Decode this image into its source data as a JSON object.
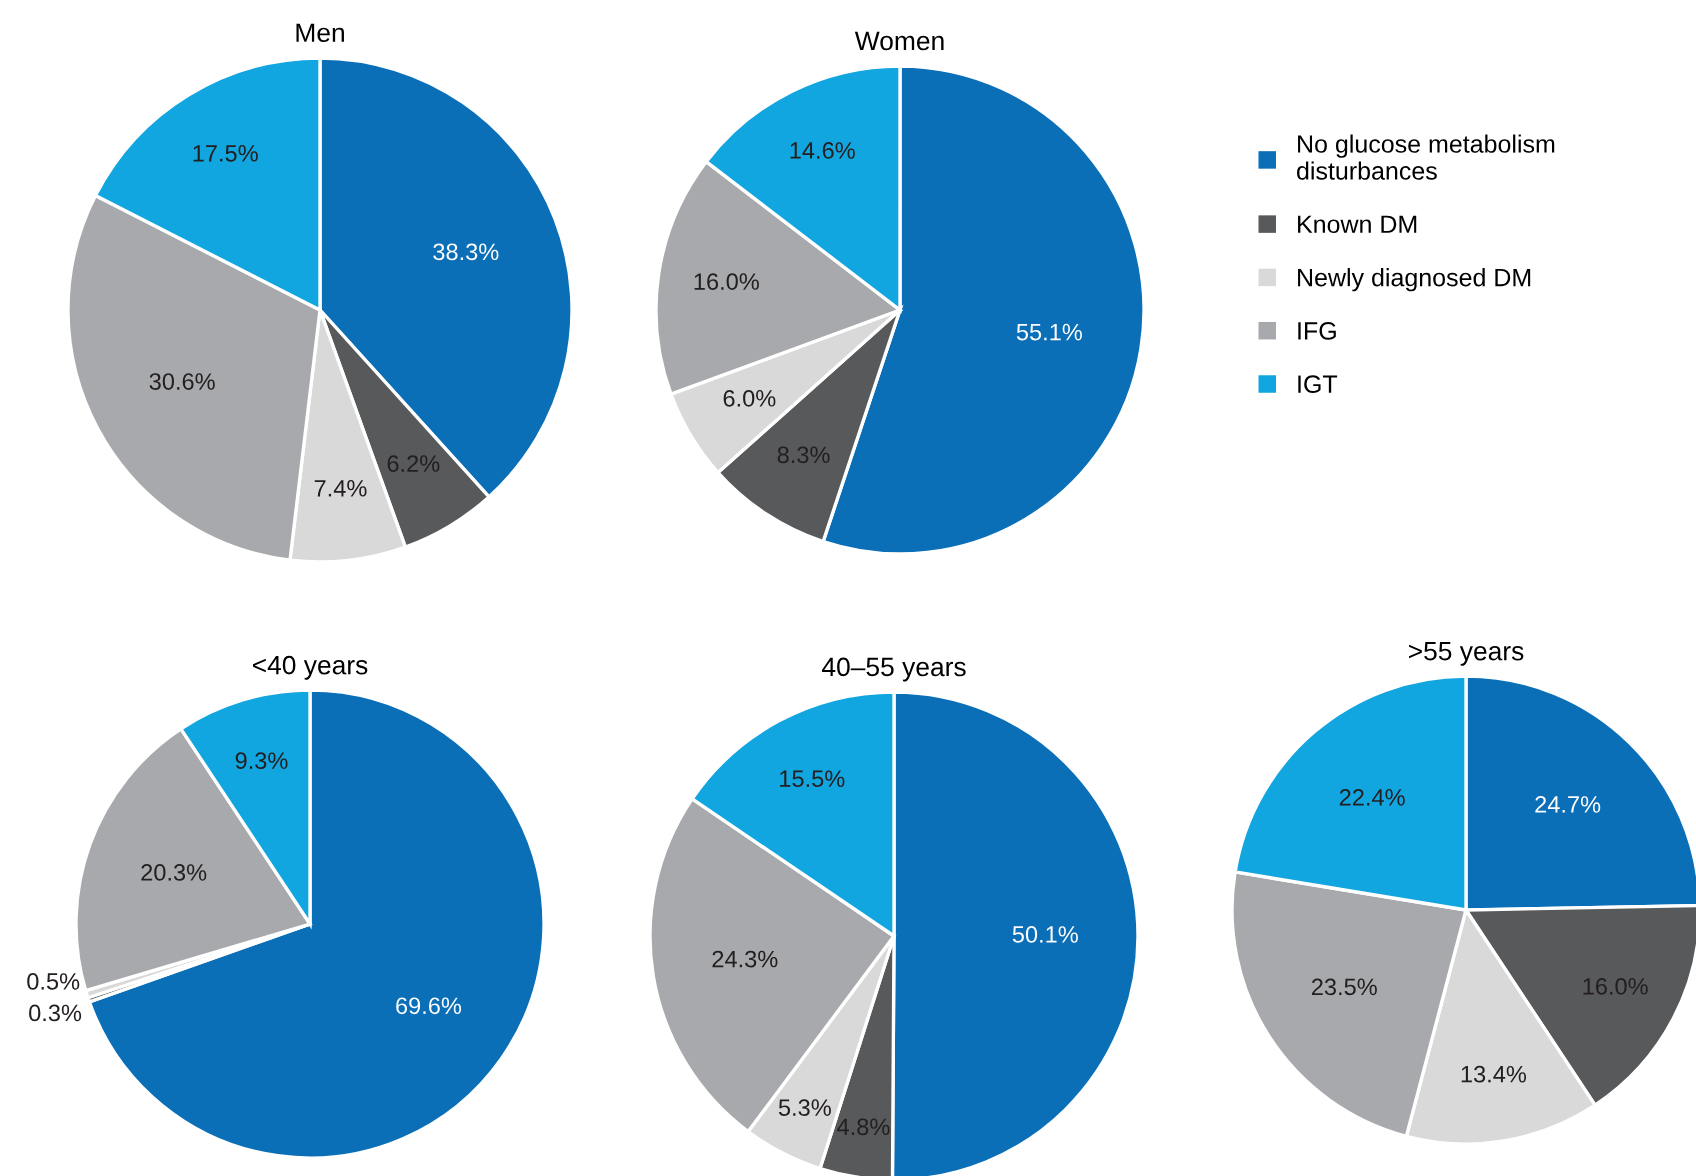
{
  "chart_data": [
    {
      "type": "pie",
      "title": "Men",
      "categories": [
        "No glucose metabolism disturbances",
        "Known DM",
        "Newly diagnosed DM",
        "IFG",
        "IGT"
      ],
      "values": [
        38.3,
        6.2,
        7.4,
        30.6,
        17.5
      ],
      "value_labels": [
        "38.3%",
        "6.2%",
        "7.4%",
        "30.6%",
        "17.5%"
      ],
      "colors": [
        "#0b6fb8",
        "#58595b",
        "#d9d9d9",
        "#a7a9ac",
        "#11a6e0"
      ],
      "legend": "right"
    },
    {
      "type": "pie",
      "title": "Women",
      "categories": [
        null,
        null,
        null,
        null,
        null
      ],
      "values": [
        55.1,
        8.3,
        6.0,
        16.0,
        14.6
      ],
      "value_labels": [
        "55.1%",
        "8.3%",
        "6.0%",
        "16.0%",
        "14.6%"
      ],
      "colors": [
        "#0b6fb8",
        "#58595b",
        "#d9d9d9",
        "#a7a9ac",
        "#11a6e0"
      ]
    },
    {
      "type": "pie",
      "title": "<40 years",
      "categories": [
        null,
        null,
        null,
        null,
        null
      ],
      "values": [
        69.6,
        0.3,
        0.5,
        20.3,
        9.3
      ],
      "value_labels": [
        "69.6%",
        "0.3%",
        "0.5%",
        "20.3%",
        "9.3%"
      ],
      "colors": [
        "#0b6fb8",
        "#58595b",
        "#d9d9d9",
        "#a7a9ac",
        "#11a6e0"
      ]
    },
    {
      "type": "pie",
      "title": "40–55 years",
      "categories": [
        null,
        null,
        null,
        null,
        null
      ],
      "values": [
        50.1,
        4.8,
        5.3,
        24.3,
        15.5
      ],
      "value_labels": [
        "50.1%",
        "4.8%",
        "5.3%",
        "24.3%",
        "15.5%"
      ],
      "colors": [
        "#0b6fb8",
        "#58595b",
        "#d9d9d9",
        "#a7a9ac",
        "#11a6e0"
      ]
    },
    {
      "type": "pie",
      "title": ">55 years",
      "categories": [
        null,
        null,
        null,
        null,
        null
      ],
      "values": [
        24.7,
        16.0,
        13.4,
        23.5,
        22.4
      ],
      "value_labels": [
        "24.7%",
        "16.0%",
        "13.4%",
        "23.5%",
        "22.4%"
      ],
      "colors": [
        "#0b6fb8",
        "#58595b",
        "#d9d9d9",
        "#a7a9ac",
        "#11a6e0"
      ]
    }
  ]
}
